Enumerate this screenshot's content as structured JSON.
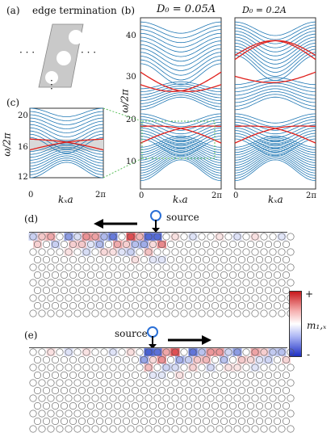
{
  "panels": {
    "a": {
      "label": "(a)",
      "title": "edge termination",
      "dots": "· · ·"
    },
    "b": {
      "label": "(b)",
      "title_left": "D₀ = 0.05A",
      "title_right": "D₀ = 0.2A",
      "yticks": [
        "40",
        "30",
        "20",
        "10"
      ],
      "xticks": [
        "0",
        "2π"
      ],
      "ylabel": "ω/2π",
      "xlabel": "kₓa"
    },
    "c": {
      "label": "(c)",
      "yticks": [
        "20",
        "16",
        "12"
      ],
      "xticks": [
        "0",
        "2π"
      ],
      "ylabel": "ω/2π",
      "xlabel": "kₓa"
    },
    "d": {
      "label": "(d)",
      "source": "source"
    },
    "e": {
      "label": "(e)",
      "source": "source"
    },
    "colorbar": {
      "top": "+",
      "bottom": "-",
      "label": "m₁,ₓ"
    }
  },
  "colors": {
    "bulk": "#1f77b4",
    "edge": "#e0201c",
    "gap": "#d9d9d9",
    "pos": "#d7262b",
    "neg": "#1f3cc9"
  },
  "chart_data": [
    {
      "type": "line",
      "panel": "b-left",
      "x_range": [
        "0",
        "2π"
      ],
      "ylim": [
        5,
        46
      ],
      "ylabel": "ω/2π",
      "xlabel": "kₓa",
      "title": "D₀ = 0.05A",
      "series": [
        {
          "color": "#1f77b4",
          "values": [
            9,
            15,
            24,
            30,
            36,
            45
          ]
        },
        {
          "color": "#e0201c",
          "values": [
            16,
            20,
            30,
            33
          ]
        }
      ]
    },
    {
      "type": "line",
      "panel": "b-right",
      "x_range": [
        "0",
        "2π"
      ],
      "ylim": [
        5,
        46
      ],
      "xlabel": "kₓa",
      "title": "D₀ = 0.2A",
      "series": [
        {
          "color": "#1f77b4",
          "values": [
            9,
            15,
            24,
            30,
            36,
            45
          ]
        },
        {
          "color": "#e0201c",
          "values": [
            16,
            20,
            32,
            37
          ]
        }
      ]
    },
    {
      "type": "line",
      "panel": "c",
      "x_range": [
        "0",
        "2π"
      ],
      "ylim": [
        12,
        21
      ],
      "ylabel": "ω/2π",
      "xlabel": "kₓa",
      "series": [
        {
          "color": "#1f77b4",
          "values": [
            12,
            20
          ]
        },
        {
          "color": "#e0201c",
          "values": [
            15.5,
            17
          ]
        }
      ]
    }
  ]
}
